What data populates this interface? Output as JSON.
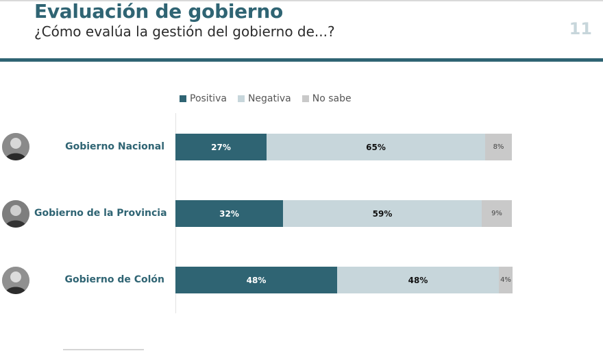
{
  "header": {
    "title": "Evaluación de gobierno",
    "subtitle": "¿Cómo evalúa la gestión del gobierno de...?",
    "page_number": "11"
  },
  "colors": {
    "positiva": "#2f6473",
    "negativa": "#c7d6db",
    "no_sabe": "#c9c9c9"
  },
  "chart_data": {
    "type": "bar",
    "orientation": "horizontal",
    "stacked": true,
    "legend_position": "top",
    "categories": [
      "Gobierno Nacional",
      "Gobierno de la Provincia",
      "Gobierno de Colón"
    ],
    "series": [
      {
        "name": "Positiva",
        "values": [
          27,
          32,
          48
        ],
        "labels": [
          "27%",
          "32%",
          "48%"
        ]
      },
      {
        "name": "Negativa",
        "values": [
          65,
          59,
          48
        ],
        "labels": [
          "65%",
          "59%",
          "48%"
        ]
      },
      {
        "name": "No sabe",
        "values": [
          8,
          9,
          4
        ],
        "labels": [
          "8%",
          "9%",
          "4%"
        ]
      }
    ],
    "xlim": [
      0,
      100
    ]
  }
}
